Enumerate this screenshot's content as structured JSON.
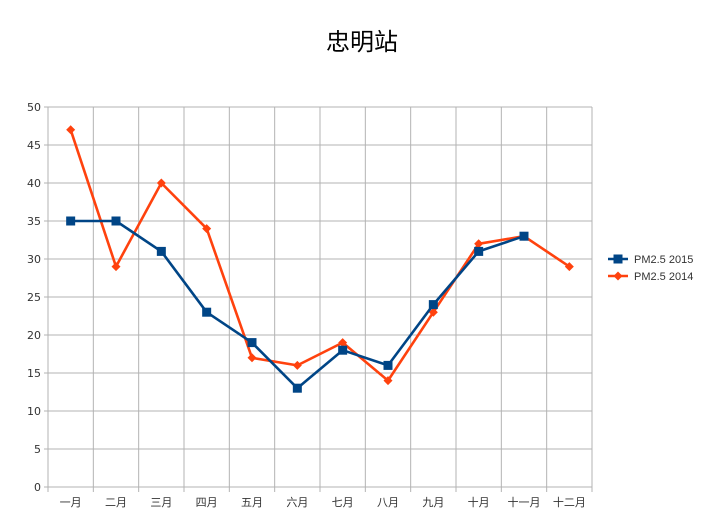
{
  "chart_data": {
    "type": "line",
    "title": "忠明站",
    "categories": [
      "一月",
      "二月",
      "三月",
      "四月",
      "五月",
      "六月",
      "七月",
      "八月",
      "九月",
      "十月",
      "十一月",
      "十二月"
    ],
    "series": [
      {
        "name": "PM2.5 2015",
        "color": "#004586",
        "marker": "square",
        "values": [
          35,
          35,
          31,
          23,
          19,
          13,
          18,
          16,
          24,
          31,
          33,
          null
        ]
      },
      {
        "name": "PM2.5 2014",
        "color": "#ff420e",
        "marker": "diamond",
        "values": [
          47,
          29,
          40,
          34,
          17,
          16,
          19,
          14,
          23,
          32,
          33,
          29
        ]
      }
    ],
    "ylim": [
      0,
      50
    ],
    "yticks": [
      0,
      5,
      10,
      15,
      20,
      25,
      30,
      35,
      40,
      45,
      50
    ],
    "grid": true,
    "legend_position": "right"
  }
}
